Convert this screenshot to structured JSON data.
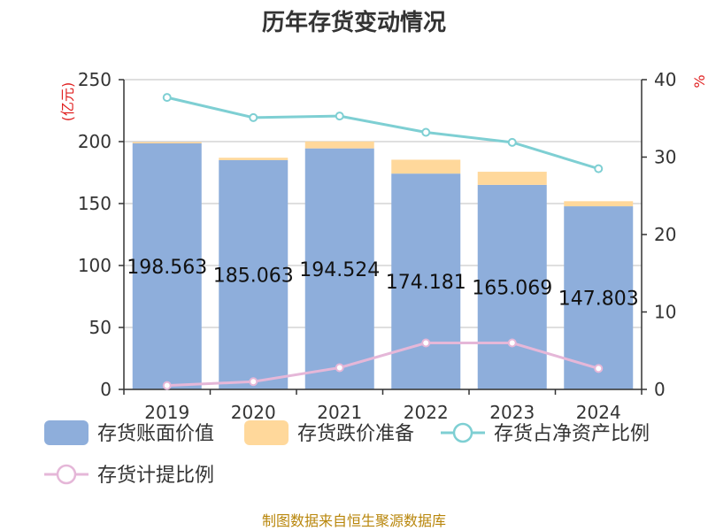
{
  "chart_data": {
    "type": "bar",
    "title": "历年存货变动情况",
    "categories": [
      "2019",
      "2020",
      "2021",
      "2022",
      "2023",
      "2024"
    ],
    "y_left": {
      "label": "(亿元)",
      "min": 0,
      "max": 250,
      "ticks": [
        0,
        50,
        100,
        150,
        200,
        250
      ]
    },
    "y_right": {
      "label": "%",
      "min": 0,
      "max": 40,
      "ticks": [
        0,
        10,
        20,
        30,
        40
      ]
    },
    "grid": true,
    "legend_position": "bottom-left",
    "series": [
      {
        "name": "存货账面价值",
        "kind": "stacked-bar",
        "axis": "left",
        "color": "#8eaedb",
        "values": [
          198.563,
          185.063,
          194.524,
          174.181,
          165.069,
          147.803
        ],
        "labels": [
          "198.563",
          "185.063",
          "194.524",
          "174.181",
          "165.069",
          "147.803"
        ]
      },
      {
        "name": "存货跌价准备",
        "kind": "stacked-bar",
        "axis": "left",
        "color": "#ffd89b",
        "values": [
          1.0,
          1.9,
          5.6,
          11.2,
          10.6,
          4.1
        ]
      },
      {
        "name": "存货占净资产比例",
        "kind": "line",
        "axis": "right",
        "color": "#7ecfd3",
        "values": [
          37.7,
          35.1,
          35.3,
          33.2,
          31.9,
          28.5
        ]
      },
      {
        "name": "存货计提比例",
        "kind": "line",
        "axis": "right",
        "color": "#e5b7d8",
        "values": [
          0.5,
          1.0,
          2.8,
          6.0,
          6.0,
          2.7
        ]
      }
    ]
  },
  "source": "制图数据来自恒生聚源数据库"
}
